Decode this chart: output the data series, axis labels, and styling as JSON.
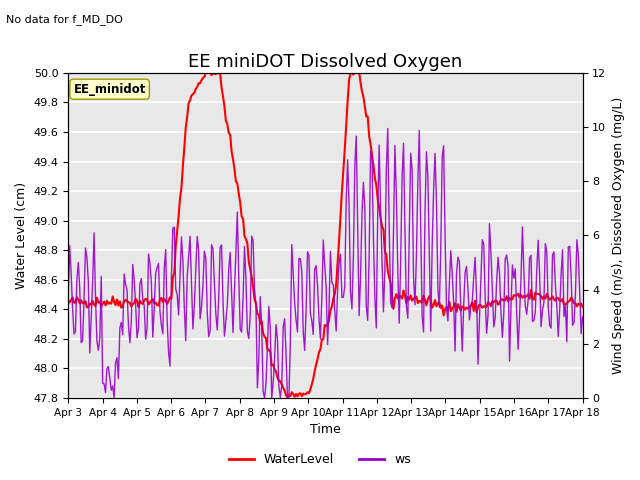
{
  "title": "EE miniDOT Dissolved Oxygen",
  "subtitle": "No data for f_MD_DO",
  "ylabel_left": "Water Level (cm)",
  "ylabel_right": "Wind Speed (m/s), Dissolved Oxygen (mg/L)",
  "xlabel": "Time",
  "ylim_left": [
    47.8,
    50.0
  ],
  "ylim_right": [
    0,
    12
  ],
  "yticks_left": [
    47.8,
    48.0,
    48.2,
    48.4,
    48.6,
    48.8,
    49.0,
    49.2,
    49.4,
    49.6,
    49.8,
    50.0
  ],
  "yticks_right": [
    0,
    2,
    4,
    6,
    8,
    10,
    12
  ],
  "legend_labels": [
    "WaterLevel",
    "ws"
  ],
  "legend_colors": [
    "red",
    "#9900cc"
  ],
  "annotation_text": "EE_minidot",
  "bg_color": "#e8e8e8",
  "wl_color": "red",
  "ws_color": "#9900cc",
  "title_fontsize": 13,
  "label_fontsize": 9,
  "tick_fontsize": 8,
  "legend_fontsize": 9,
  "x_tick_labels": [
    "Apr 3",
    "Apr 4",
    "Apr 5",
    "Apr 6",
    "Apr 7",
    "Apr 8",
    "Apr 9",
    "Apr 10",
    "Apr 11",
    "Apr 12",
    "Apr 13",
    "Apr 14",
    "Apr 15",
    "Apr 16",
    "Apr 17",
    "Apr 18"
  ]
}
